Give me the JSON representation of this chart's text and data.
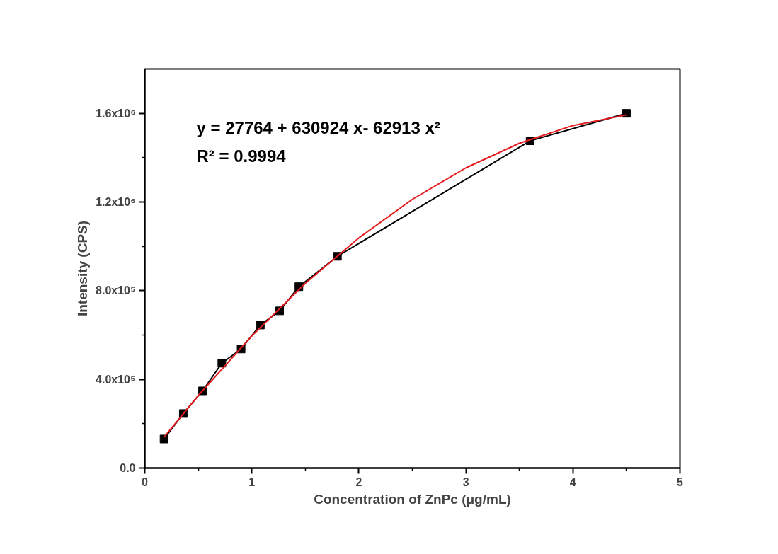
{
  "chart_data": {
    "type": "line",
    "xlabel": "Concentration of ZnPc (μg/mL)",
    "ylabel": "Intensity (CPS)",
    "xlim": [
      0,
      5
    ],
    "xticks": [
      0,
      1,
      2,
      3,
      4,
      5
    ],
    "ylim": [
      0,
      1800000
    ],
    "yticks": [
      {
        "value": 0,
        "label": "0.0"
      },
      {
        "value": 400000,
        "label": "4.0x10⁵"
      },
      {
        "value": 800000,
        "label": "8.0x10⁵"
      },
      {
        "value": 1200000,
        "label": "1.2x10⁶"
      },
      {
        "value": 1600000,
        "label": "1.6x10⁶"
      }
    ],
    "grid": false,
    "series": [
      {
        "color": "#000000",
        "marker": "square",
        "line_style": "solid",
        "x": [
          0.18,
          0.36,
          0.54,
          0.72,
          0.9,
          1.08,
          1.26,
          1.44,
          1.8,
          3.6,
          4.5
        ],
        "values": [
          131000,
          246000,
          348000,
          473000,
          537000,
          645000,
          709000,
          818000,
          955000,
          1476000,
          1600000
        ]
      },
      {
        "color": "#e41a1c",
        "marker": "none",
        "line_style": "solid",
        "x": [
          0.18,
          0.5,
          1.0,
          1.5,
          2.0,
          2.5,
          3.0,
          3.5,
          4.0,
          4.5
        ],
        "values": [
          139000,
          327000,
          596000,
          833000,
          1038000,
          1212000,
          1354000,
          1465000,
          1545000,
          1593000
        ]
      }
    ],
    "annotations": [
      "y = 27764 + 630924 x- 62913 x²",
      "R² = 0.9994"
    ]
  }
}
